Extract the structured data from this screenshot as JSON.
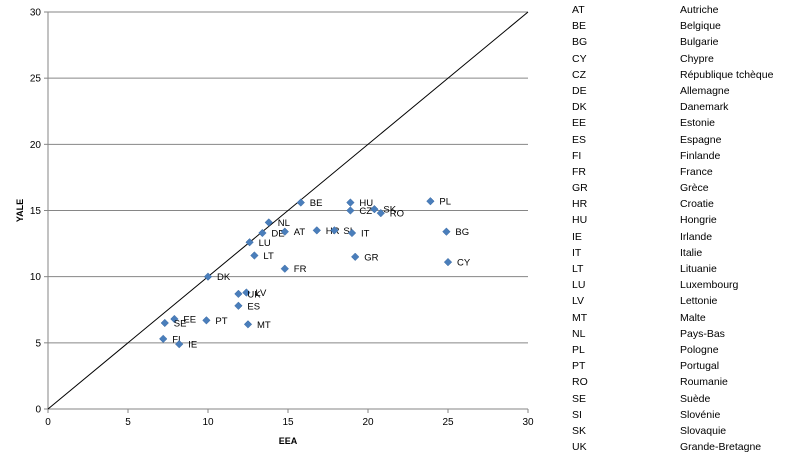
{
  "chart_data": {
    "type": "scatter",
    "xlabel": "EEA",
    "ylabel": "YALE",
    "xlim": [
      0,
      30
    ],
    "ylim": [
      0,
      30
    ],
    "x_ticks": [
      "0",
      "5",
      "10",
      "15",
      "20",
      "25",
      "30"
    ],
    "y_ticks": [
      "0",
      "5",
      "10",
      "15",
      "20",
      "25",
      "30"
    ],
    "grid": "horizontal",
    "reference_line": "y = x",
    "marker_color": "#4a7ebb",
    "points": [
      {
        "label": "BE",
        "x": 15.8,
        "y": 15.6
      },
      {
        "label": "HU",
        "x": 18.9,
        "y": 15.6
      },
      {
        "label": "PL",
        "x": 23.9,
        "y": 15.7
      },
      {
        "label": "CZ",
        "x": 18.9,
        "y": 15.0
      },
      {
        "label": "SK",
        "x": 20.4,
        "y": 15.1
      },
      {
        "label": "RO",
        "x": 20.8,
        "y": 14.8
      },
      {
        "label": "NL",
        "x": 13.8,
        "y": 14.1
      },
      {
        "label": "DE",
        "x": 13.4,
        "y": 13.3
      },
      {
        "label": "AT",
        "x": 14.8,
        "y": 13.4
      },
      {
        "label": "HR",
        "x": 16.8,
        "y": 13.5
      },
      {
        "label": "SI",
        "x": 17.9,
        "y": 13.5
      },
      {
        "label": "IT",
        "x": 19.0,
        "y": 13.3
      },
      {
        "label": "BG",
        "x": 24.9,
        "y": 13.4
      },
      {
        "label": "LU",
        "x": 12.6,
        "y": 12.6
      },
      {
        "label": "LT",
        "x": 12.9,
        "y": 11.6
      },
      {
        "label": "GR",
        "x": 19.2,
        "y": 11.5
      },
      {
        "label": "CY",
        "x": 25.0,
        "y": 11.1
      },
      {
        "label": "FR",
        "x": 14.8,
        "y": 10.6
      },
      {
        "label": "DK",
        "x": 10.0,
        "y": 10.0
      },
      {
        "label": "LV",
        "x": 12.4,
        "y": 8.8
      },
      {
        "label": "UK",
        "x": 11.9,
        "y": 8.7
      },
      {
        "label": "ES",
        "x": 11.9,
        "y": 7.8
      },
      {
        "label": "EE",
        "x": 7.9,
        "y": 6.8
      },
      {
        "label": "PT",
        "x": 9.9,
        "y": 6.7
      },
      {
        "label": "SE",
        "x": 7.3,
        "y": 6.5
      },
      {
        "label": "MT",
        "x": 12.5,
        "y": 6.4
      },
      {
        "label": "FI",
        "x": 7.2,
        "y": 5.3
      },
      {
        "label": "IE",
        "x": 8.2,
        "y": 4.9
      }
    ]
  },
  "legend": [
    {
      "code": "AT",
      "name": "Autriche"
    },
    {
      "code": "BE",
      "name": "Belgique"
    },
    {
      "code": "BG",
      "name": "Bulgarie"
    },
    {
      "code": "CY",
      "name": "Chypre"
    },
    {
      "code": "CZ",
      "name": "République tchèque"
    },
    {
      "code": "DE",
      "name": "Allemagne"
    },
    {
      "code": "DK",
      "name": "Danemark"
    },
    {
      "code": "EE",
      "name": "Estonie"
    },
    {
      "code": "ES",
      "name": "Espagne"
    },
    {
      "code": "FI",
      "name": "Finlande"
    },
    {
      "code": "FR",
      "name": "France"
    },
    {
      "code": "GR",
      "name": "Grèce"
    },
    {
      "code": "HR",
      "name": "Croatie"
    },
    {
      "code": "HU",
      "name": "Hongrie"
    },
    {
      "code": "IE",
      "name": "Irlande"
    },
    {
      "code": "IT",
      "name": "Italie"
    },
    {
      "code": "LT",
      "name": "Lituanie"
    },
    {
      "code": "LU",
      "name": "Luxembourg"
    },
    {
      "code": "LV",
      "name": "Lettonie"
    },
    {
      "code": "MT",
      "name": "Malte"
    },
    {
      "code": "NL",
      "name": "Pays-Bas"
    },
    {
      "code": "PL",
      "name": "Pologne"
    },
    {
      "code": "PT",
      "name": "Portugal"
    },
    {
      "code": "RO",
      "name": "Roumanie"
    },
    {
      "code": "SE",
      "name": "Suède"
    },
    {
      "code": "SI",
      "name": "Slovénie"
    },
    {
      "code": "SK",
      "name": "Slovaquie"
    },
    {
      "code": "UK",
      "name": "Grande-Bretagne"
    }
  ]
}
